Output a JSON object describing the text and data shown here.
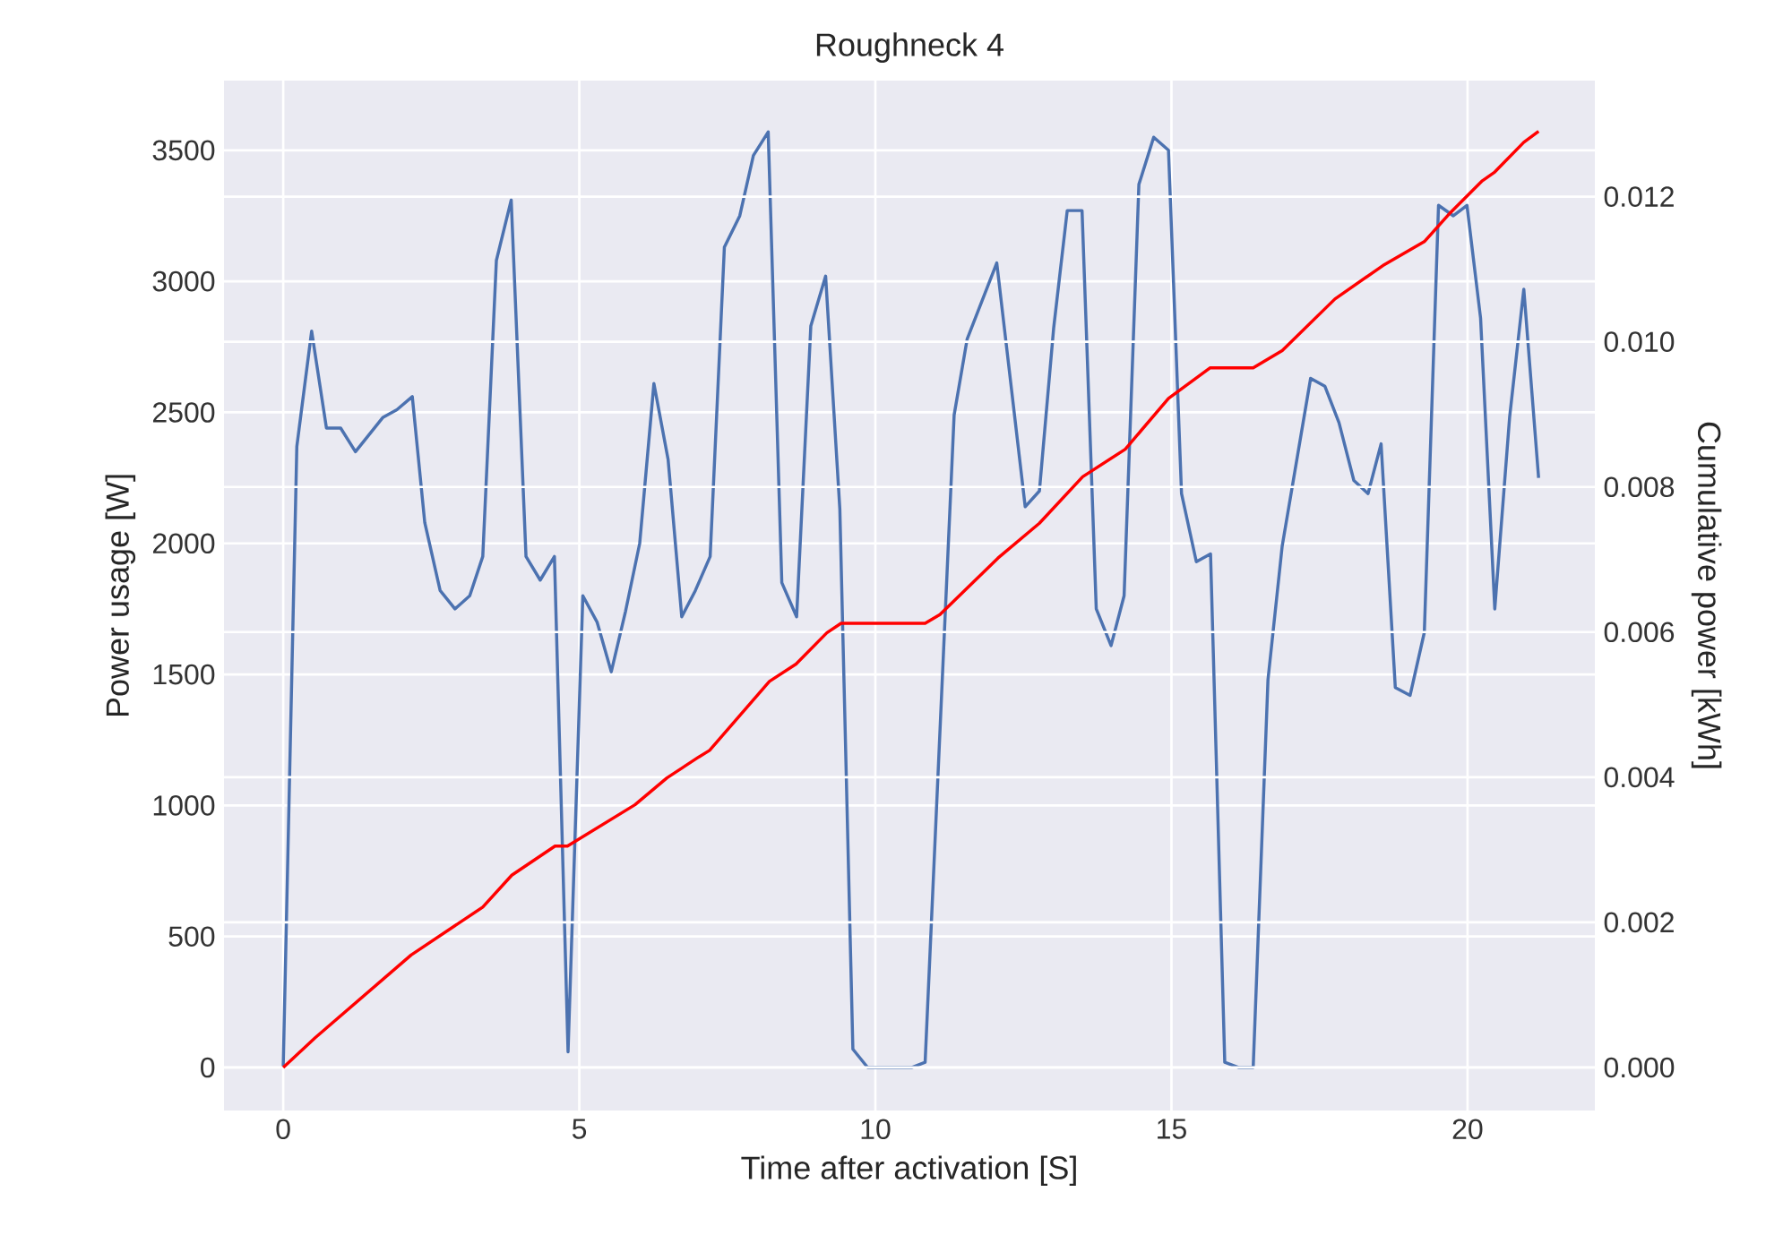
{
  "chart_data": {
    "type": "line",
    "title": "Roughneck 4",
    "xlabel": "Time after activation [S]",
    "ylabel": "Power usage [W]",
    "y2label": "Cumulative power [kWh]",
    "grid": true,
    "xlim": [
      -1.0,
      22.15
    ],
    "ylim": [
      -164,
      3766
    ],
    "y2lim": [
      -0.000593,
      0.0136
    ],
    "xticks": [
      0,
      5,
      10,
      15,
      20
    ],
    "yticks": [
      0,
      500,
      1000,
      1500,
      2000,
      2500,
      3000,
      3500
    ],
    "y2ticks": [
      {
        "value": 0,
        "label": "0.000"
      },
      {
        "value": 0.002,
        "label": "0.002"
      },
      {
        "value": 0.004,
        "label": "0.004"
      },
      {
        "value": 0.006,
        "label": "0.006"
      },
      {
        "value": 0.008,
        "label": "0.008"
      },
      {
        "value": 0.01,
        "label": "0.010"
      },
      {
        "value": 0.012,
        "label": "0.012"
      }
    ],
    "series": [
      {
        "color": "#4c72b0",
        "x": [
          0,
          0.23,
          0.48,
          0.73,
          0.97,
          1.22,
          1.68,
          1.92,
          2.18,
          2.39,
          2.65,
          2.9,
          3.15,
          3.37,
          3.6,
          3.85,
          4.1,
          4.34,
          4.58,
          4.81,
          5.06,
          5.3,
          5.54,
          5.78,
          6.02,
          6.26,
          6.5,
          6.73,
          6.96,
          7.21,
          7.45,
          7.71,
          7.94,
          8.19,
          8.42,
          8.67,
          8.91,
          9.16,
          9.4,
          9.62,
          9.87,
          10.61,
          10.84,
          11.33,
          11.55,
          12.05,
          12.53,
          12.77,
          13.01,
          13.24,
          13.49,
          13.73,
          13.98,
          14.2,
          14.45,
          14.7,
          14.95,
          15.17,
          15.42,
          15.66,
          15.9,
          16.14,
          16.38,
          16.63,
          16.87,
          17.35,
          17.59,
          17.83,
          18.08,
          18.32,
          18.54,
          18.78,
          19.03,
          19.27,
          19.51,
          19.76,
          19.99,
          20.22,
          20.46,
          20.71,
          20.95,
          21.2
        ],
        "values": [
          0,
          2370,
          2810,
          2440,
          2440,
          2350,
          2480,
          2510,
          2560,
          2080,
          1820,
          1750,
          1800,
          1950,
          3080,
          3310,
          1950,
          1860,
          1950,
          60,
          1800,
          1700,
          1510,
          1740,
          2000,
          2610,
          2320,
          1720,
          1820,
          1950,
          3130,
          3250,
          3480,
          3570,
          1850,
          1720,
          2830,
          3020,
          2130,
          70,
          0,
          0,
          20,
          2490,
          2780,
          3070,
          2140,
          2200,
          2820,
          3270,
          3270,
          1750,
          1610,
          1800,
          3370,
          3550,
          3500,
          2190,
          1930,
          1960,
          20,
          0,
          0,
          1480,
          1990,
          2630,
          2600,
          2460,
          2240,
          2190,
          2380,
          1450,
          1420,
          1660,
          3290,
          3250,
          3290,
          2860,
          1750,
          2480,
          2970,
          2250
        ]
      },
      {
        "color": "#ff0000",
        "axis": "y2",
        "x": [
          0,
          0.54,
          2.16,
          3.37,
          3.86,
          4.59,
          4.8,
          5.94,
          6.48,
          7.02,
          7.2,
          8.21,
          8.66,
          9.18,
          9.42,
          10.84,
          11.09,
          12.07,
          12.77,
          13.5,
          14.22,
          14.95,
          15.65,
          16.38,
          16.87,
          17.76,
          18.57,
          19.27,
          19.71,
          20.25,
          20.46,
          20.95,
          21.2
        ],
        "values": [
          0,
          0.00041,
          0.00155,
          0.00221,
          0.00265,
          0.00305,
          0.00305,
          0.00362,
          0.00399,
          0.00428,
          0.00437,
          0.00532,
          0.00556,
          0.00599,
          0.00612,
          0.00612,
          0.00624,
          0.00702,
          0.0075,
          0.00814,
          0.00852,
          0.00922,
          0.00964,
          0.00964,
          0.00988,
          0.01059,
          0.01105,
          0.01138,
          0.01178,
          0.01222,
          0.01234,
          0.01275,
          0.0129
        ]
      }
    ]
  }
}
